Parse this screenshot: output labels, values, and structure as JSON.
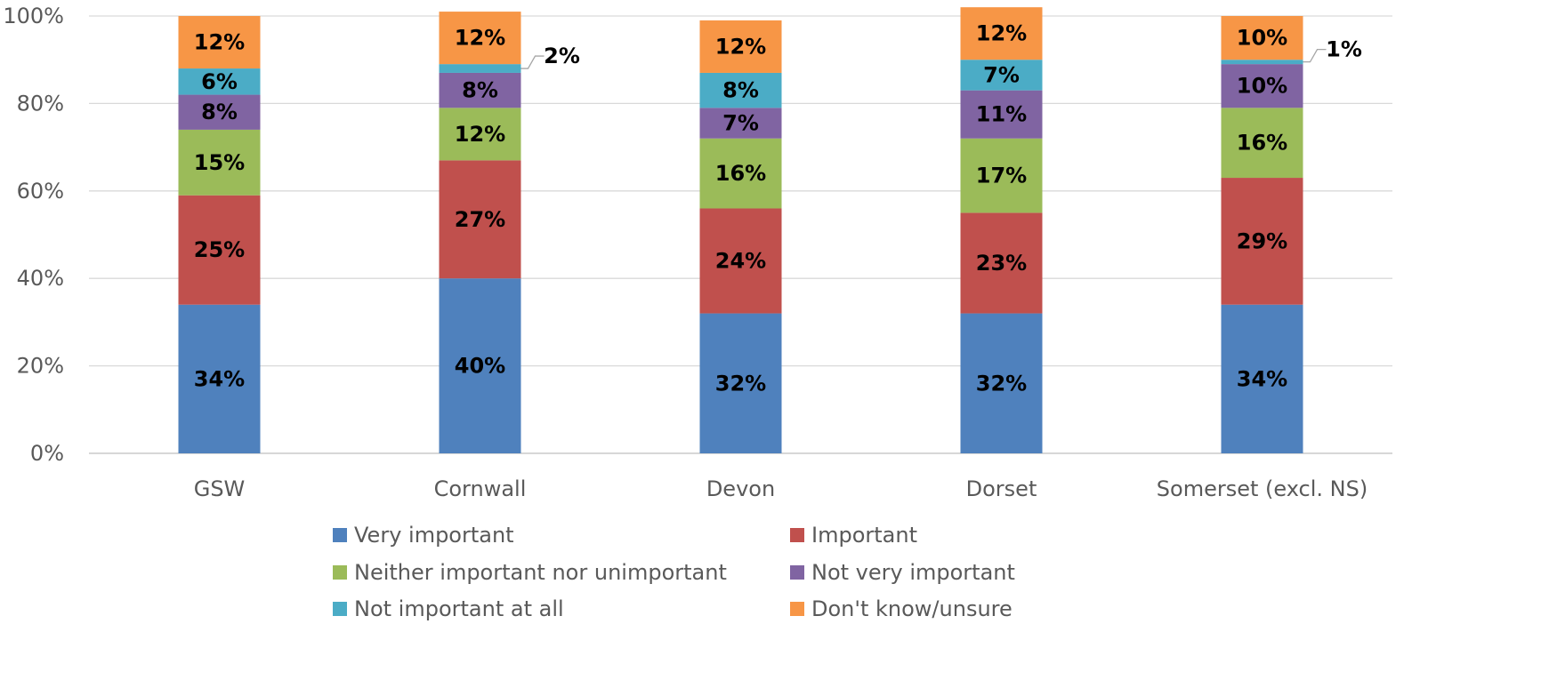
{
  "chart_data": {
    "type": "bar",
    "stacked": true,
    "percent_stacked": true,
    "categories": [
      "GSW",
      "Cornwall",
      "Devon",
      "Dorset",
      "Somerset (excl. NS)"
    ],
    "series": [
      {
        "name": "Very important",
        "color": "#4F81BD",
        "values": [
          34,
          40,
          32,
          32,
          34
        ]
      },
      {
        "name": "Important",
        "color": "#C0504D",
        "values": [
          25,
          27,
          24,
          23,
          29
        ]
      },
      {
        "name": "Neither important nor unimportant",
        "color": "#9BBB59",
        "values": [
          15,
          12,
          16,
          17,
          16
        ]
      },
      {
        "name": "Not very important",
        "color": "#8064A2",
        "values": [
          8,
          8,
          7,
          11,
          10
        ]
      },
      {
        "name": "Not important at all",
        "color": "#4BACC6",
        "values": [
          6,
          2,
          8,
          7,
          1
        ]
      },
      {
        "name": "Don't know/unsure",
        "color": "#F79646",
        "values": [
          12,
          12,
          12,
          12,
          10
        ]
      }
    ],
    "data_labels": [
      [
        "34%",
        "40%",
        "32%",
        "32%",
        "34%"
      ],
      [
        "25%",
        "27%",
        "24%",
        "23%",
        "29%"
      ],
      [
        "15%",
        "12%",
        "16%",
        "17%",
        "16%"
      ],
      [
        "8%",
        "8%",
        "7%",
        "11%",
        "10%"
      ],
      [
        "6%",
        "2%",
        "8%",
        "7%",
        "1%"
      ],
      [
        "12%",
        "12%",
        "12%",
        "12%",
        "10%"
      ]
    ],
    "callout_labels": [
      "Cornwall|Not important at all",
      "Somerset (excl. NS)|Not important at all"
    ],
    "ylim": [
      0,
      100
    ],
    "yticks": [
      "0%",
      "20%",
      "40%",
      "60%",
      "80%",
      "100%"
    ],
    "ytick_values": [
      0,
      20,
      40,
      60,
      80,
      100
    ],
    "title": "",
    "xlabel": "",
    "ylabel": "",
    "grid": true,
    "legend_position": "bottom"
  }
}
